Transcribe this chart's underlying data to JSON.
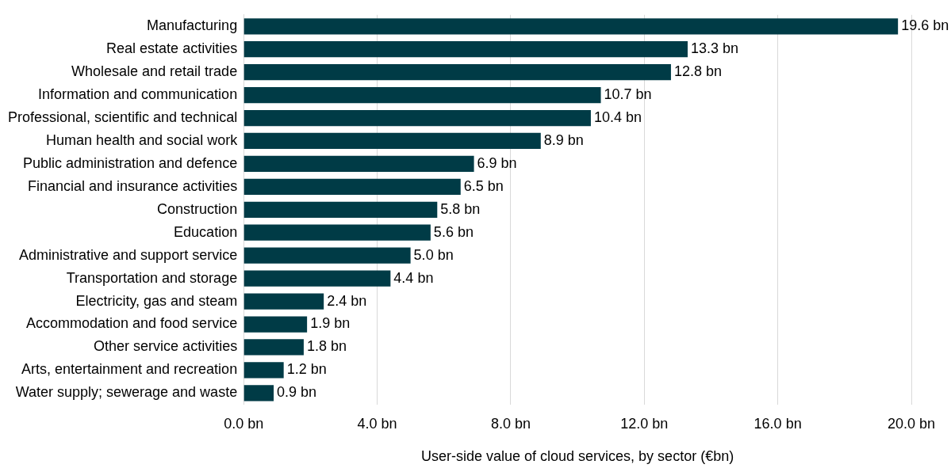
{
  "chart_data": {
    "type": "bar",
    "orientation": "horizontal",
    "xlabel": "User-side value of cloud services, by sector (€bn)",
    "categories": [
      "Manufacturing",
      "Real estate activities",
      "Wholesale and retail trade",
      "Information and communication",
      "Professional, scientific and technical",
      "Human health and social work",
      "Public administration and defence",
      "Financial and insurance activities",
      "Construction",
      "Education",
      "Administrative and support service",
      "Transportation and storage",
      "Electricity, gas and steam",
      "Accommodation and food service",
      "Other service activities",
      "Arts, entertainment and recreation",
      "Water supply; sewerage and waste"
    ],
    "values": [
      19.6,
      13.3,
      12.8,
      10.7,
      10.4,
      8.9,
      6.9,
      6.5,
      5.8,
      5.6,
      5.0,
      4.4,
      2.4,
      1.9,
      1.8,
      1.2,
      0.9
    ],
    "value_labels": [
      "19.6 bn",
      "13.3 bn",
      "12.8 bn",
      "10.7 bn",
      "10.4 bn",
      "8.9 bn",
      "6.9 bn",
      "6.5 bn",
      "5.8 bn",
      "5.6 bn",
      "5.0 bn",
      "4.4 bn",
      "2.4 bn",
      "1.9 bn",
      "1.8 bn",
      "1.2 bn",
      "0.9 bn"
    ],
    "color": "#003b46",
    "xlim": [
      0,
      20
    ],
    "xticks": [
      {
        "value": 0,
        "label": "0.0 bn"
      },
      {
        "value": 4,
        "label": "4.0 bn"
      },
      {
        "value": 8,
        "label": "8.0 bn"
      },
      {
        "value": 12,
        "label": "12.0 bn"
      },
      {
        "value": 16,
        "label": "16.0 bn"
      },
      {
        "value": 20,
        "label": "20.0 bn"
      }
    ],
    "grid": "x",
    "legend": false
  }
}
